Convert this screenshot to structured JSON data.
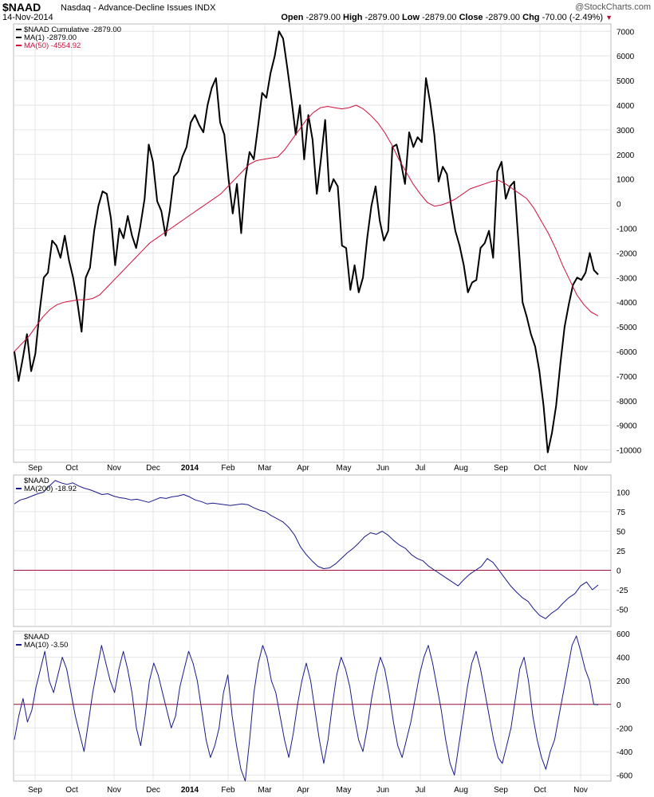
{
  "header": {
    "symbol": "$NAAD",
    "name": "Nasdaq - Advance-Decline Issues INDX",
    "date": "14-Nov-2014",
    "brand": "@StockCharts.com",
    "open_label": "Open",
    "open": "-2879.00",
    "high_label": "High",
    "high": "-2879.00",
    "low_label": "Low",
    "low": "-2879.00",
    "close_label": "Close",
    "close": "-2879.00",
    "chg_label": "Chg",
    "chg": "-70.00 (-2.49%)",
    "chg_arrow": "▼"
  },
  "colors": {
    "price": "#000000",
    "ma50": "#d0103a",
    "indicator": "#1a1a8c",
    "zero_line": "#a0103a",
    "grid": "#e4e4e4",
    "border": "#bbbbbb"
  },
  "x_labels": [
    "Sep",
    "Oct",
    "Nov",
    "Dec",
    "2014",
    "Feb",
    "Mar",
    "Apr",
    "May",
    "Jun",
    "Jul",
    "Aug",
    "Sep",
    "Oct",
    "Nov"
  ],
  "chart_data": [
    {
      "type": "line",
      "panel": "main",
      "ylim": [
        -10500,
        7300
      ],
      "yticks": [
        7000,
        6000,
        5000,
        4000,
        3000,
        2000,
        1000,
        0,
        -1000,
        -2000,
        -3000,
        -4000,
        -5000,
        -6000,
        -7000,
        -8000,
        -9000,
        -10000
      ],
      "legend": [
        "$NAAD Cumulative -2879.00",
        "MA(1) -2879.00",
        "MA(50) -4554.92"
      ],
      "series": [
        {
          "name": "$NAAD Cumulative",
          "values": [
            -6000,
            -7200,
            -6300,
            -5300,
            -6800,
            -6100,
            -4400,
            -3000,
            -2800,
            -1500,
            -1700,
            -2200,
            -1300,
            -2300,
            -3000,
            -4000,
            -5200,
            -3000,
            -2600,
            -1100,
            -100,
            500,
            400,
            -600,
            -2500,
            -1000,
            -1400,
            -500,
            -1300,
            -1800,
            -900,
            200,
            2400,
            1700,
            100,
            -300,
            -1300,
            -300,
            1100,
            1300,
            1900,
            2300,
            3300,
            3600,
            3200,
            2900,
            4000,
            4700,
            5100,
            3300,
            2800,
            1000,
            -400,
            800,
            -1200,
            1000,
            2100,
            1800,
            3100,
            4500,
            4300,
            5300,
            6000,
            7000,
            6700,
            5500,
            4200,
            2800,
            4000,
            1800,
            3600,
            2600,
            400,
            1800,
            3400,
            500,
            1000,
            700,
            -1700,
            -1800,
            -3500,
            -2500,
            -3600,
            -3000,
            -1400,
            -100,
            700,
            -700,
            -1500,
            -1100,
            2300,
            2400,
            1700,
            800,
            2900,
            2300,
            2700,
            2500,
            5100,
            4100,
            2800,
            900,
            1500,
            1200,
            -100,
            -1100,
            -1700,
            -2500,
            -3600,
            -3200,
            -3100,
            -1800,
            -1600,
            -1100,
            -2200,
            1300,
            1700,
            200,
            700,
            900,
            -1500,
            -4000,
            -4600,
            -5300,
            -5800,
            -6800,
            -8200,
            -10100,
            -9300,
            -8200,
            -6500,
            -5000,
            -4100,
            -3300,
            -3000,
            -3100,
            -2800,
            -2000,
            -2700,
            -2879
          ]
        },
        {
          "name": "MA(50)",
          "values": [
            -6000,
            -5700,
            -5400,
            -5000,
            -4600,
            -4300,
            -4100,
            -4000,
            -3950,
            -3900,
            -3900,
            -3850,
            -3700,
            -3400,
            -3100,
            -2800,
            -2500,
            -2200,
            -1900,
            -1600,
            -1400,
            -1200,
            -1000,
            -800,
            -600,
            -400,
            -200,
            0,
            200,
            400,
            700,
            1000,
            1300,
            1600,
            1750,
            1800,
            1850,
            1900,
            2200,
            2600,
            3000,
            3400,
            3700,
            3900,
            3950,
            3900,
            3850,
            3900,
            4000,
            3850,
            3600,
            3300,
            2900,
            2400,
            1800,
            1300,
            800,
            400,
            50,
            -100,
            -50,
            50,
            200,
            400,
            600,
            700,
            800,
            900,
            950,
            800,
            600,
            400,
            200,
            -200,
            -700,
            -1200,
            -1800,
            -2500,
            -3100,
            -3700,
            -4100,
            -4400,
            -4554.92
          ]
        }
      ]
    },
    {
      "type": "line",
      "panel": "middle",
      "ylim": [
        -72,
        122
      ],
      "yticks": [
        100,
        75,
        50,
        25,
        0,
        -25,
        -50
      ],
      "legend": [
        "$NAAD",
        "MA(200) -18.92"
      ],
      "series": [
        {
          "name": "MA(200)",
          "values": [
            85,
            90,
            92,
            95,
            98,
            100,
            108,
            115,
            112,
            110,
            112,
            108,
            105,
            103,
            100,
            97,
            98,
            95,
            93,
            92,
            90,
            91,
            89,
            87,
            90,
            93,
            92,
            94,
            95,
            97,
            94,
            90,
            88,
            85,
            86,
            85,
            84,
            83,
            84,
            85,
            84,
            80,
            77,
            75,
            70,
            66,
            62,
            55,
            45,
            30,
            20,
            12,
            5,
            2,
            3,
            8,
            15,
            22,
            28,
            35,
            43,
            48,
            46,
            50,
            45,
            38,
            32,
            28,
            20,
            15,
            12,
            5,
            0,
            -5,
            -10,
            -15,
            -20,
            -12,
            -5,
            0,
            5,
            15,
            10,
            0,
            -10,
            -20,
            -28,
            -35,
            -40,
            -50,
            -58,
            -62,
            -55,
            -50,
            -42,
            -35,
            -30,
            -20,
            -15,
            -25,
            -18.92
          ]
        }
      ]
    },
    {
      "type": "line",
      "panel": "bottom",
      "ylim": [
        -650,
        620
      ],
      "yticks": [
        600,
        400,
        200,
        0,
        -200,
        -400,
        -600
      ],
      "legend": [
        "$NAAD",
        "MA(10) -3.50"
      ],
      "series": [
        {
          "name": "MA(10)",
          "values": [
            -300,
            -100,
            50,
            -150,
            -50,
            150,
            300,
            450,
            200,
            100,
            250,
            400,
            300,
            100,
            -100,
            -250,
            -400,
            -150,
            100,
            300,
            500,
            350,
            200,
            100,
            300,
            450,
            300,
            100,
            -200,
            -350,
            -100,
            200,
            350,
            250,
            100,
            -50,
            -200,
            -100,
            150,
            300,
            450,
            350,
            200,
            -50,
            -300,
            -450,
            -350,
            -200,
            100,
            250,
            -100,
            -350,
            -550,
            -650,
            -300,
            100,
            350,
            500,
            400,
            200,
            100,
            -100,
            -300,
            -450,
            -250,
            0,
            200,
            350,
            200,
            -50,
            -300,
            -500,
            -300,
            0,
            250,
            400,
            300,
            150,
            -100,
            -300,
            -400,
            -200,
            50,
            250,
            400,
            300,
            100,
            -150,
            -350,
            -450,
            -300,
            -150,
            50,
            250,
            400,
            500,
            350,
            150,
            -50,
            -300,
            -500,
            -600,
            -350,
            -100,
            150,
            350,
            450,
            300,
            100,
            -100,
            -300,
            -450,
            -500,
            -350,
            -200,
            50,
            300,
            400,
            200,
            -100,
            -300,
            -450,
            -550,
            -400,
            -300,
            -100,
            100,
            300,
            500,
            580,
            450,
            300,
            200,
            0,
            -3.5
          ]
        }
      ]
    }
  ]
}
